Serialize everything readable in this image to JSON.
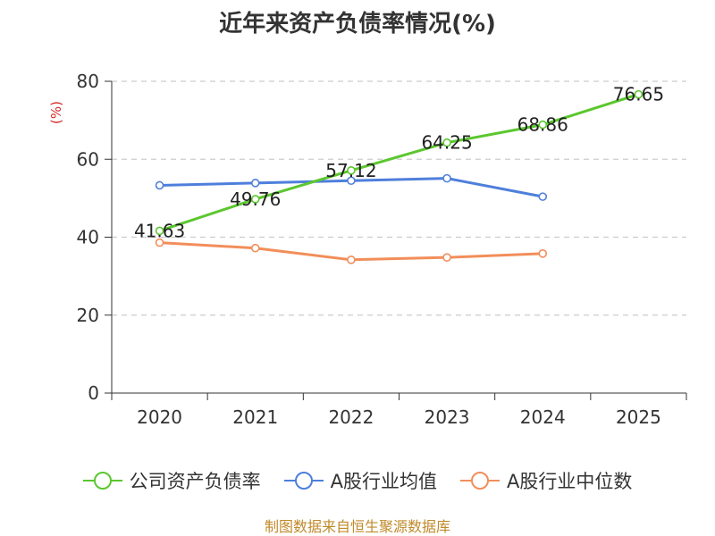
{
  "chart_data": {
    "type": "line",
    "title": "近年来资产负债率情况(%)",
    "ylabel": "(%)",
    "xlabel": "",
    "categories": [
      "2020",
      "2021",
      "2022",
      "2023",
      "2024",
      "2025"
    ],
    "ylim": [
      0,
      80
    ],
    "yticks": [
      0,
      20,
      40,
      60,
      80
    ],
    "grid": "horizontal dashed",
    "legend_position": "bottom",
    "series": [
      {
        "name": "公司资产负债率",
        "color": "#5bc72e",
        "values": [
          41.63,
          49.76,
          57.12,
          64.25,
          68.86,
          76.65
        ],
        "labels": [
          "41.63",
          "49.76",
          "57.12",
          "64.25",
          "68.86",
          "76.65"
        ]
      },
      {
        "name": "A股行业均值",
        "color": "#4e7fdb",
        "values": [
          53.3,
          53.9,
          54.5,
          55.1,
          50.4,
          null
        ]
      },
      {
        "name": "A股行业中位数",
        "color": "#f28e5a",
        "values": [
          38.6,
          37.2,
          34.2,
          34.8,
          35.8,
          null
        ]
      }
    ]
  },
  "source_note": "制图数据来自恒生聚源数据库"
}
